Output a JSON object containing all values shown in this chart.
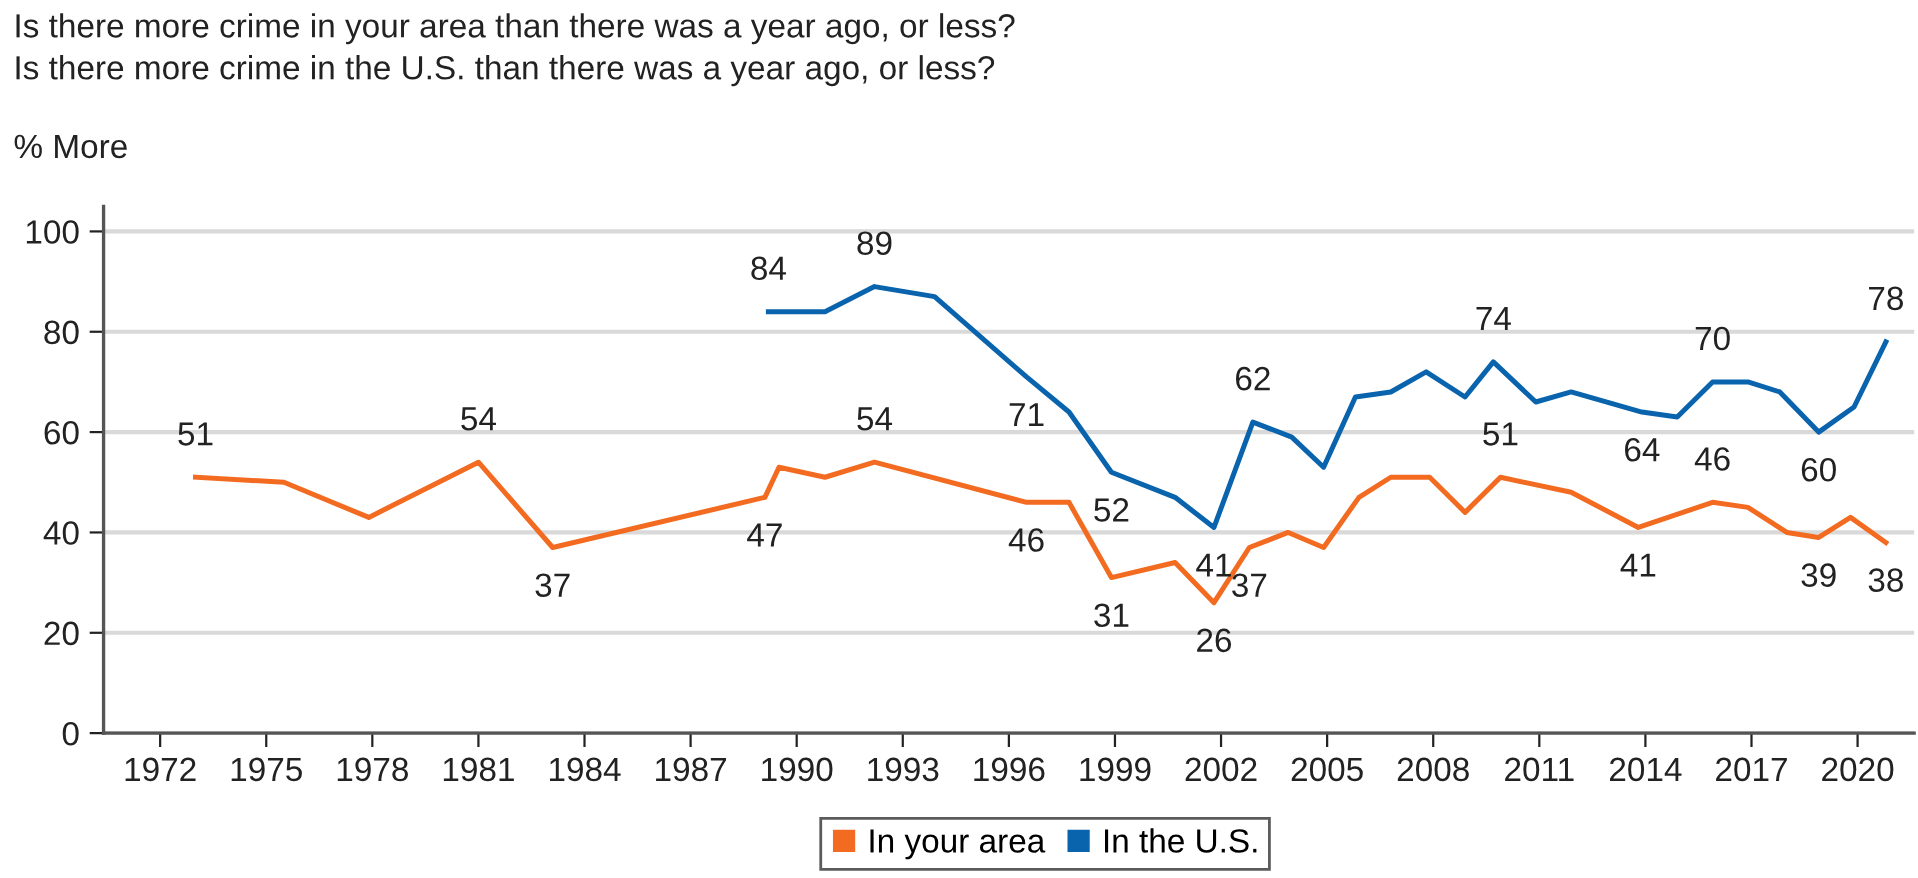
{
  "chart_data": {
    "type": "line",
    "title": "Is there more crime in your area than there was a year ago, or less?\nIs there more crime in the U.S. than there was a year ago, or less?",
    "ylabel": "% More",
    "series": [
      {
        "name": "In your area",
        "color": "#f26b21",
        "x": [
          1973.0,
          1975.5,
          1977.9,
          1981.0,
          1983.1,
          1989.1,
          1989.5,
          1990.8,
          1992.2,
          1996.5,
          1997.7,
          1998.9,
          2000.7,
          2001.8,
          2002.8,
          2003.9,
          2004.9,
          2005.9,
          2006.8,
          2007.9,
          2008.9,
          2009.9,
          2011.9,
          2013.8,
          2015.9,
          2016.9,
          2018.0,
          2018.9,
          2019.8,
          2020.8
        ],
        "values": [
          51,
          50,
          43,
          54,
          37,
          47,
          53,
          51,
          54,
          46,
          46,
          31,
          34,
          26,
          37,
          40,
          37,
          47,
          51,
          51,
          44,
          51,
          48,
          41,
          46,
          45,
          40,
          39,
          43,
          38
        ],
        "value_labels": [
          "51",
          null,
          null,
          "54",
          "37",
          "47",
          null,
          null,
          "54",
          "46",
          null,
          "31",
          null,
          "26",
          "37",
          null,
          null,
          null,
          null,
          null,
          null,
          "51",
          null,
          "41",
          "46",
          null,
          null,
          "39",
          null,
          "38"
        ]
      },
      {
        "name": "In the U.S.",
        "color": "#0a64ad",
        "x": [
          1989.2,
          1990.8,
          1992.2,
          1993.9,
          1996.5,
          1997.7,
          1998.9,
          2000.7,
          2001.8,
          2002.9,
          2004.0,
          2004.9,
          2005.8,
          2006.8,
          2007.8,
          2008.9,
          2009.7,
          2010.9,
          2011.9,
          2013.9,
          2014.9,
          2015.9,
          2016.9,
          2017.8,
          2018.9,
          2019.9,
          2020.8
        ],
        "values": [
          84,
          84,
          89,
          87,
          71,
          64,
          52,
          47,
          41,
          62,
          59,
          53,
          67,
          68,
          72,
          67,
          74,
          66,
          68,
          64,
          63,
          70,
          70,
          68,
          60,
          65,
          78
        ],
        "value_labels": [
          "84",
          null,
          "89",
          null,
          "71",
          null,
          "52",
          null,
          "41",
          "62",
          null,
          null,
          null,
          null,
          null,
          null,
          "74",
          null,
          null,
          "64",
          null,
          "70",
          null,
          null,
          "60",
          null,
          "78"
        ]
      }
    ],
    "xlim": [
      1970.4,
      2021.6
    ],
    "xticks": [
      1972,
      1975,
      1978,
      1981,
      1984,
      1987,
      1990,
      1993,
      1996,
      1999,
      2002,
      2005,
      2008,
      2011,
      2014,
      2017,
      2020
    ],
    "ylim": [
      0,
      105
    ],
    "yticks": [
      0,
      20,
      40,
      60,
      80,
      100
    ],
    "grid": "y",
    "legend": "bottom",
    "marker": "none",
    "line_style": "solid"
  }
}
